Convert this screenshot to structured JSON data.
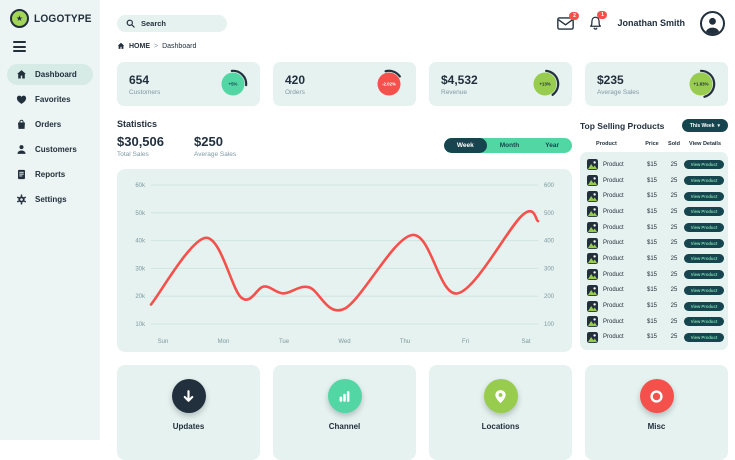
{
  "brand": {
    "name": "LOGOTYPE"
  },
  "topbar": {
    "search_placeholder": "Search",
    "mail_badge": "2",
    "bell_badge": "1",
    "user_name": "Jonathan Smith"
  },
  "breadcrumb": {
    "home": "HOME",
    "separator": ">",
    "current": "Dashboard"
  },
  "sidebar": {
    "items": [
      {
        "label": "Dashboard",
        "icon": "home-icon",
        "active": true
      },
      {
        "label": "Favorites",
        "icon": "heart-icon",
        "active": false
      },
      {
        "label": "Orders",
        "icon": "shopping-bag-icon",
        "active": false
      },
      {
        "label": "Customers",
        "icon": "user-icon",
        "active": false
      },
      {
        "label": "Reports",
        "icon": "report-icon",
        "active": false
      },
      {
        "label": "Settings",
        "icon": "gear-icon",
        "active": false
      }
    ]
  },
  "stat_cards": [
    {
      "value": "654",
      "label": "Customers",
      "delta": "+5%",
      "color": "#52d6a4",
      "delta_text_color": "#17454f",
      "arc_start": -5,
      "arc_len": 100
    },
    {
      "value": "420",
      "label": "Orders",
      "delta": "-2.02%",
      "color": "#f4514c",
      "delta_text_color": "#ffffff",
      "arc_start": -15,
      "arc_len": 70
    },
    {
      "value": "$4,532",
      "label": "Revenue",
      "delta": "+13%",
      "color": "#97cc4e",
      "delta_text_color": "#22303e",
      "arc_start": 5,
      "arc_len": 140
    },
    {
      "value": "$235",
      "label": "Average Sales",
      "delta": "+1.83%",
      "color": "#97cc4e",
      "delta_text_color": "#22303e",
      "arc_start": 0,
      "arc_len": 165
    }
  ],
  "statistics": {
    "title": "Statistics",
    "totals": [
      {
        "value": "$30,506",
        "label": "Total Sales"
      },
      {
        "value": "$250",
        "label": "Average Sales"
      }
    ],
    "range_tabs": [
      {
        "label": "Week",
        "active": true
      },
      {
        "label": "Month",
        "active": false
      },
      {
        "label": "Year",
        "active": false
      }
    ]
  },
  "chart_data": {
    "type": "line",
    "title": "Weekly sales statistics",
    "x_labels": [
      "Sun",
      "Mon",
      "Tue",
      "Wed",
      "Thu",
      "Fri",
      "Sat"
    ],
    "y_left_ticks": [
      "60k",
      "50k",
      "40k",
      "30k",
      "20k",
      "10k"
    ],
    "y_right_ticks": [
      "600",
      "500",
      "400",
      "300",
      "200",
      "100"
    ],
    "y_axis_range_thousands": [
      10,
      60
    ],
    "grid": true,
    "legend": "none",
    "series": [
      {
        "name": "Sales",
        "color": "#f4514c",
        "points_day_vs_thousands": [
          [
            0,
            17
          ],
          [
            0.85,
            41
          ],
          [
            1.4,
            19.5
          ],
          [
            1.75,
            23.5
          ],
          [
            2.05,
            21
          ],
          [
            2.45,
            23.2
          ],
          [
            3.0,
            15.5
          ],
          [
            4.05,
            42
          ],
          [
            4.75,
            21
          ],
          [
            5.75,
            49
          ],
          [
            6,
            47
          ]
        ]
      }
    ]
  },
  "products": {
    "title": "Top Selling Products",
    "filter_label": "This Week",
    "filter_caret": "▾",
    "columns": [
      "Product",
      "Price",
      "Sold",
      "View Details"
    ],
    "rows": [
      {
        "name": "Product",
        "price": "$15",
        "sold": "25",
        "action": "View Product"
      },
      {
        "name": "Product",
        "price": "$15",
        "sold": "25",
        "action": "View Product"
      },
      {
        "name": "Product",
        "price": "$15",
        "sold": "25",
        "action": "View Product"
      },
      {
        "name": "Product",
        "price": "$15",
        "sold": "25",
        "action": "View Product"
      },
      {
        "name": "Product",
        "price": "$15",
        "sold": "25",
        "action": "View Product"
      },
      {
        "name": "Product",
        "price": "$15",
        "sold": "25",
        "action": "View Product"
      },
      {
        "name": "Product",
        "price": "$15",
        "sold": "25",
        "action": "View Product"
      },
      {
        "name": "Product",
        "price": "$15",
        "sold": "25",
        "action": "View Product"
      },
      {
        "name": "Product",
        "price": "$15",
        "sold": "25",
        "action": "View Product"
      },
      {
        "name": "Product",
        "price": "$15",
        "sold": "25",
        "action": "View Product"
      },
      {
        "name": "Product",
        "price": "$15",
        "sold": "25",
        "action": "View Product"
      },
      {
        "name": "Product",
        "price": "$15",
        "sold": "25",
        "action": "View Product"
      }
    ]
  },
  "bottom_cards": [
    {
      "label": "Updates",
      "icon": "download-arrow-icon",
      "color": "#22303e"
    },
    {
      "label": "Channel",
      "icon": "bar-chart-icon",
      "color": "#52d6a4"
    },
    {
      "label": "Locations",
      "icon": "location-pin-icon",
      "color": "#97cc4e"
    },
    {
      "label": "Misc",
      "icon": "ring-icon",
      "color": "#f4514c"
    }
  ],
  "colors": {
    "accent_teal": "#52d6a4",
    "accent_lime": "#97cc4e",
    "accent_red": "#f4514c",
    "dark_navy": "#22303e",
    "teal_dark": "#17454f",
    "card_bg": "#e6f2ef",
    "sidebar_bg": "#ecf5f3",
    "gridline": "#cfe4e0",
    "axis_text": "#7c99a0"
  }
}
